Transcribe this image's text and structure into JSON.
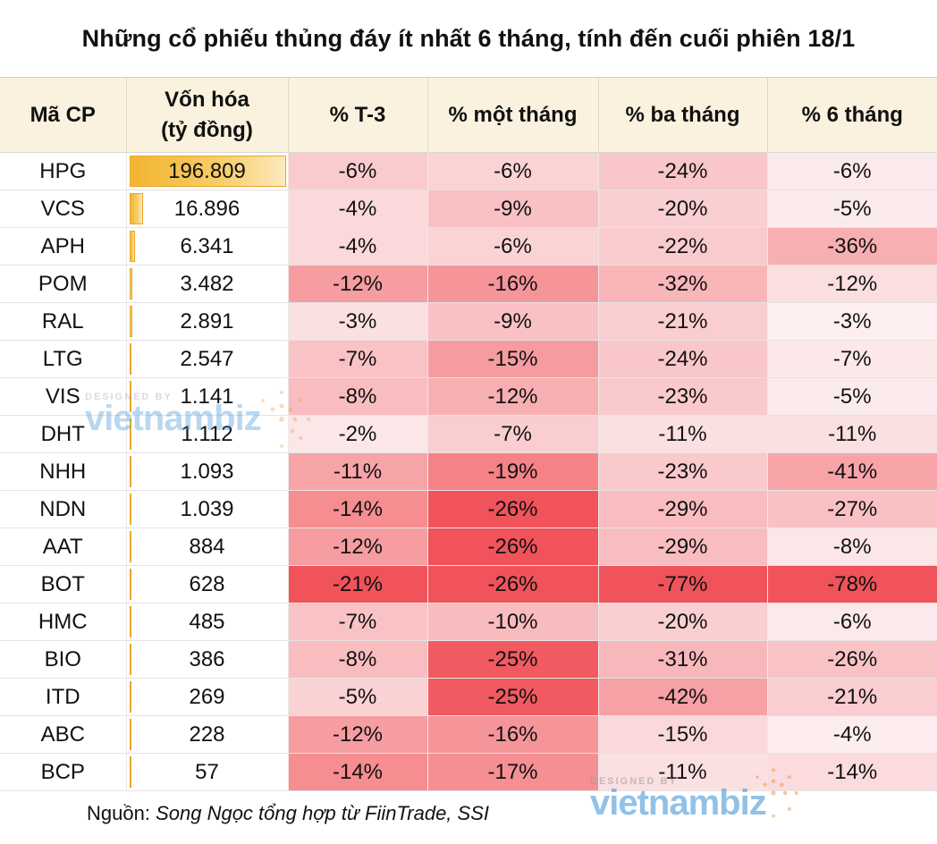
{
  "title": "Những cổ phiếu thủng đáy ít nhất 6 tháng, tính đến cuối phiên 18/1",
  "colors": {
    "header_bg": "#fbf1df",
    "heat_light": "#fdf3f4",
    "heat_dark": "#f0535a",
    "cap_bar": "#f2b431"
  },
  "chart_data": {
    "type": "table",
    "columns": [
      "Mã CP",
      "Vốn hóa (tỷ đồng)",
      "% T-3",
      "% một tháng",
      "% ba tháng",
      "% 6 tháng"
    ],
    "column_header_lines": [
      [
        "Mã CP"
      ],
      [
        "Vốn hóa",
        "(tỷ đồng)"
      ],
      [
        "% T-3"
      ],
      [
        "% một tháng"
      ],
      [
        "% ba tháng"
      ],
      [
        "% 6 tháng"
      ]
    ],
    "rows": [
      {
        "code": "HPG",
        "cap": 196809,
        "cap_label": "196.809",
        "t3": -6,
        "m1": -6,
        "m3": -24,
        "m6": -6
      },
      {
        "code": "VCS",
        "cap": 16896,
        "cap_label": "16.896",
        "t3": -4,
        "m1": -9,
        "m3": -20,
        "m6": -5
      },
      {
        "code": "APH",
        "cap": 6341,
        "cap_label": "6.341",
        "t3": -4,
        "m1": -6,
        "m3": -22,
        "m6": -36
      },
      {
        "code": "POM",
        "cap": 3482,
        "cap_label": "3.482",
        "t3": -12,
        "m1": -16,
        "m3": -32,
        "m6": -12
      },
      {
        "code": "RAL",
        "cap": 2891,
        "cap_label": "2.891",
        "t3": -3,
        "m1": -9,
        "m3": -21,
        "m6": -3
      },
      {
        "code": "LTG",
        "cap": 2547,
        "cap_label": "2.547",
        "t3": -7,
        "m1": -15,
        "m3": -24,
        "m6": -7
      },
      {
        "code": "VIS",
        "cap": 1141,
        "cap_label": "1.141",
        "t3": -8,
        "m1": -12,
        "m3": -23,
        "m6": -5
      },
      {
        "code": "DHT",
        "cap": 1112,
        "cap_label": "1.112",
        "t3": -2,
        "m1": -7,
        "m3": -11,
        "m6": -11
      },
      {
        "code": "NHH",
        "cap": 1093,
        "cap_label": "1.093",
        "t3": -11,
        "m1": -19,
        "m3": -23,
        "m6": -41
      },
      {
        "code": "NDN",
        "cap": 1039,
        "cap_label": "1.039",
        "t3": -14,
        "m1": -26,
        "m3": -29,
        "m6": -27
      },
      {
        "code": "AAT",
        "cap": 884,
        "cap_label": "884",
        "t3": -12,
        "m1": -26,
        "m3": -29,
        "m6": -8
      },
      {
        "code": "BOT",
        "cap": 628,
        "cap_label": "628",
        "t3": -21,
        "m1": -26,
        "m3": -77,
        "m6": -78
      },
      {
        "code": "HMC",
        "cap": 485,
        "cap_label": "485",
        "t3": -7,
        "m1": -10,
        "m3": -20,
        "m6": -6
      },
      {
        "code": "BIO",
        "cap": 386,
        "cap_label": "386",
        "t3": -8,
        "m1": -25,
        "m3": -31,
        "m6": -26
      },
      {
        "code": "ITD",
        "cap": 269,
        "cap_label": "269",
        "t3": -5,
        "m1": -25,
        "m3": -42,
        "m6": -21
      },
      {
        "code": "ABC",
        "cap": 228,
        "cap_label": "228",
        "t3": -12,
        "m1": -16,
        "m3": -15,
        "m6": -4
      },
      {
        "code": "BCP",
        "cap": 57,
        "cap_label": "57",
        "t3": -14,
        "m1": -17,
        "m3": -11,
        "m6": -14
      }
    ]
  },
  "footer": {
    "label": "Nguồn:",
    "source": "Song Ngọc tổng hợp từ FiinTrade, SSI"
  },
  "watermark": {
    "designed_by": "DESIGNED BY",
    "brand": "vietnambiz"
  }
}
